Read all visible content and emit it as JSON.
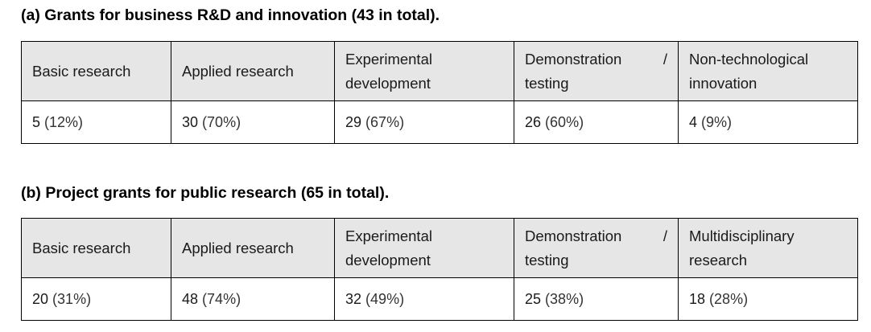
{
  "section_a": {
    "title": "(a) Grants for business R&D and innovation (43 in total).",
    "headers": [
      {
        "line1": "Basic research",
        "line2": ""
      },
      {
        "line1": "Applied research",
        "line2": ""
      },
      {
        "line1": "Experimental",
        "line2": "development"
      },
      {
        "line1": "Demonstration",
        "slash": "/",
        "line2": "testing"
      },
      {
        "line1": "Non-technological",
        "line2": "innovation"
      }
    ],
    "values": [
      {
        "count": "5",
        "pct": "(12%)"
      },
      {
        "count": "30",
        "pct": "(70%)"
      },
      {
        "count": "29",
        "pct": "(67%)"
      },
      {
        "count": "26",
        "pct": "(60%)"
      },
      {
        "count": "4",
        "pct": "(9%)"
      }
    ]
  },
  "section_b": {
    "title": "(b) Project grants for public research (65 in total).",
    "headers": [
      {
        "line1": "Basic research",
        "line2": ""
      },
      {
        "line1": "Applied research",
        "line2": ""
      },
      {
        "line1": "Experimental",
        "line2": "development"
      },
      {
        "line1": "Demonstration",
        "slash": "/",
        "line2": "testing"
      },
      {
        "line1": "Multidisciplinary",
        "line2": "research"
      }
    ],
    "values": [
      {
        "count": "20",
        "pct": "(31%)"
      },
      {
        "count": "48",
        "pct": "(74%)"
      },
      {
        "count": "32",
        "pct": "(49%)"
      },
      {
        "count": "25",
        "pct": "(38%)"
      },
      {
        "count": "18",
        "pct": "(28%)"
      }
    ]
  }
}
